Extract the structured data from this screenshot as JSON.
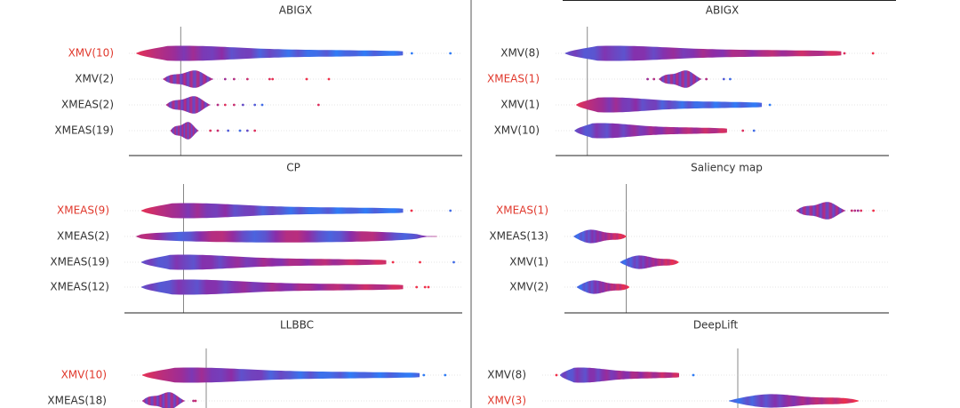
{
  "colors": {
    "low": "#2f7cf6",
    "mid": "#8a2ca8",
    "high": "#f0304a",
    "highlight": "#e0382c",
    "label": "#333333",
    "axis": "#222222",
    "baseline": "#888888"
  },
  "chart_data": [
    {
      "type": "violin",
      "title": "ABIGX",
      "features": [
        {
          "label": "XMV(10)",
          "highlight": true,
          "min": -0.3,
          "max": 1.5,
          "mode": "spread",
          "outliers": [
            {
              "v": 1.56,
              "c": 0.0
            },
            {
              "v": 1.82,
              "c": 0.0
            }
          ]
        },
        {
          "label": "XMV(2)",
          "highlight": false,
          "min": -0.12,
          "max": 0.22,
          "mode": "compact",
          "outliers": [
            {
              "v": 0.3,
              "c": 0.6
            },
            {
              "v": 0.36,
              "c": 0.7
            },
            {
              "v": 0.45,
              "c": 0.8
            },
            {
              "v": 0.6,
              "c": 0.9
            },
            {
              "v": 0.62,
              "c": 0.95
            },
            {
              "v": 0.85,
              "c": 1.0
            },
            {
              "v": 1.0,
              "c": 1.0
            }
          ]
        },
        {
          "label": "XMEAS(2)",
          "highlight": false,
          "min": -0.1,
          "max": 0.2,
          "mode": "compact",
          "outliers": [
            {
              "v": 0.25,
              "c": 0.7
            },
            {
              "v": 0.3,
              "c": 0.9
            },
            {
              "v": 0.36,
              "c": 0.8
            },
            {
              "v": 0.42,
              "c": 0.3
            },
            {
              "v": 0.5,
              "c": 0.2
            },
            {
              "v": 0.55,
              "c": 0.1
            },
            {
              "v": 0.93,
              "c": 0.9
            }
          ]
        },
        {
          "label": "XMEAS(19)",
          "highlight": false,
          "min": -0.07,
          "max": 0.12,
          "mode": "compact",
          "outliers": [
            {
              "v": 0.2,
              "c": 0.9
            },
            {
              "v": 0.25,
              "c": 0.8
            },
            {
              "v": 0.32,
              "c": 0.2
            },
            {
              "v": 0.4,
              "c": 0.1
            },
            {
              "v": 0.45,
              "c": 0.3
            },
            {
              "v": 0.5,
              "c": 0.9
            }
          ]
        }
      ]
    },
    {
      "type": "violin",
      "title": "ABIGX",
      "features": [
        {
          "label": "XMV(8)",
          "highlight": false,
          "min": -0.14,
          "max": 1.6,
          "mode": "spread-reverse",
          "outliers": [
            {
              "v": 1.62,
              "c": 0.9
            },
            {
              "v": 1.8,
              "c": 1.0
            }
          ]
        },
        {
          "label": "XMEAS(1)",
          "highlight": true,
          "min": 0.45,
          "max": 0.72,
          "mode": "compact",
          "outliers": [
            {
              "v": 0.38,
              "c": 0.6
            },
            {
              "v": 0.42,
              "c": 0.7
            },
            {
              "v": 0.75,
              "c": 0.7
            },
            {
              "v": 0.86,
              "c": 0.2
            },
            {
              "v": 0.9,
              "c": 0.1
            }
          ]
        },
        {
          "label": "XMV(1)",
          "highlight": false,
          "min": -0.07,
          "max": 1.1,
          "mode": "spread",
          "outliers": [
            {
              "v": 1.15,
              "c": 0.0
            }
          ]
        },
        {
          "label": "XMV(10)",
          "highlight": false,
          "min": -0.08,
          "max": 0.88,
          "mode": "spread-reverse",
          "outliers": [
            {
              "v": 0.98,
              "c": 0.9
            },
            {
              "v": 1.05,
              "c": 0.1
            }
          ]
        }
      ]
    },
    {
      "type": "violin",
      "title": "CP",
      "features": [
        {
          "label": "XMEAS(9)",
          "highlight": true,
          "min": -0.25,
          "max": 1.3,
          "mode": "spread",
          "outliers": [
            {
              "v": 1.35,
              "c": 1.0
            },
            {
              "v": 1.58,
              "c": 0.1
            }
          ]
        },
        {
          "label": "XMEAS(2)",
          "highlight": false,
          "min": -0.28,
          "max": 1.5,
          "mode": "flat",
          "outliers": []
        },
        {
          "label": "XMEAS(19)",
          "highlight": false,
          "min": -0.25,
          "max": 1.2,
          "mode": "spread-reverse",
          "outliers": [
            {
              "v": 1.24,
              "c": 1.0
            },
            {
              "v": 1.4,
              "c": 1.0
            },
            {
              "v": 1.6,
              "c": 0.1
            }
          ]
        },
        {
          "label": "XMEAS(12)",
          "highlight": false,
          "min": -0.25,
          "max": 1.3,
          "mode": "spread-reverse",
          "outliers": [
            {
              "v": 1.38,
              "c": 1.0
            },
            {
              "v": 1.43,
              "c": 1.0
            },
            {
              "v": 1.45,
              "c": 1.0
            }
          ]
        }
      ]
    },
    {
      "type": "violin",
      "title": "Saliency map",
      "features": [
        {
          "label": "XMEAS(1)",
          "highlight": true,
          "min": 0.55,
          "max": 0.71,
          "mode": "compact",
          "outliers": [
            {
              "v": 0.73,
              "c": 0.8
            },
            {
              "v": 0.74,
              "c": 0.7
            },
            {
              "v": 0.75,
              "c": 0.6
            },
            {
              "v": 0.76,
              "c": 0.9
            },
            {
              "v": 0.8,
              "c": 1.0
            }
          ]
        },
        {
          "label": "XMEAS(13)",
          "highlight": false,
          "min": -0.17,
          "max": 0.0,
          "mode": "ramp",
          "outliers": []
        },
        {
          "label": "XMV(1)",
          "highlight": false,
          "min": -0.02,
          "max": 0.17,
          "mode": "ramp",
          "outliers": []
        },
        {
          "label": "XMV(2)",
          "highlight": false,
          "min": -0.16,
          "max": 0.01,
          "mode": "ramp",
          "outliers": []
        }
      ]
    },
    {
      "type": "violin",
      "title": "LLBBC",
      "features": [
        {
          "label": "XMV(10)",
          "highlight": true,
          "min": -0.3,
          "max": 1.0,
          "mode": "spread",
          "outliers": [
            {
              "v": 1.02,
              "c": 0.0
            },
            {
              "v": 1.12,
              "c": 0.0
            }
          ]
        },
        {
          "label": "XMEAS(18)",
          "highlight": false,
          "min": -0.3,
          "max": -0.1,
          "mode": "compact",
          "outliers": [
            {
              "v": -0.06,
              "c": 0.7
            },
            {
              "v": -0.05,
              "c": 0.8
            }
          ]
        }
      ]
    },
    {
      "type": "violin",
      "title": "DeepLift",
      "features": [
        {
          "label": "XMV(8)",
          "highlight": false,
          "min": -1.0,
          "max": -0.33,
          "mode": "spread-reverse",
          "outliers": [
            {
              "v": -1.02,
              "c": 1.0
            },
            {
              "v": -0.25,
              "c": 0.0
            }
          ]
        },
        {
          "label": "XMV(3)",
          "highlight": true,
          "min": -0.05,
          "max": 0.68,
          "mode": "ramp",
          "outliers": []
        }
      ]
    }
  ]
}
